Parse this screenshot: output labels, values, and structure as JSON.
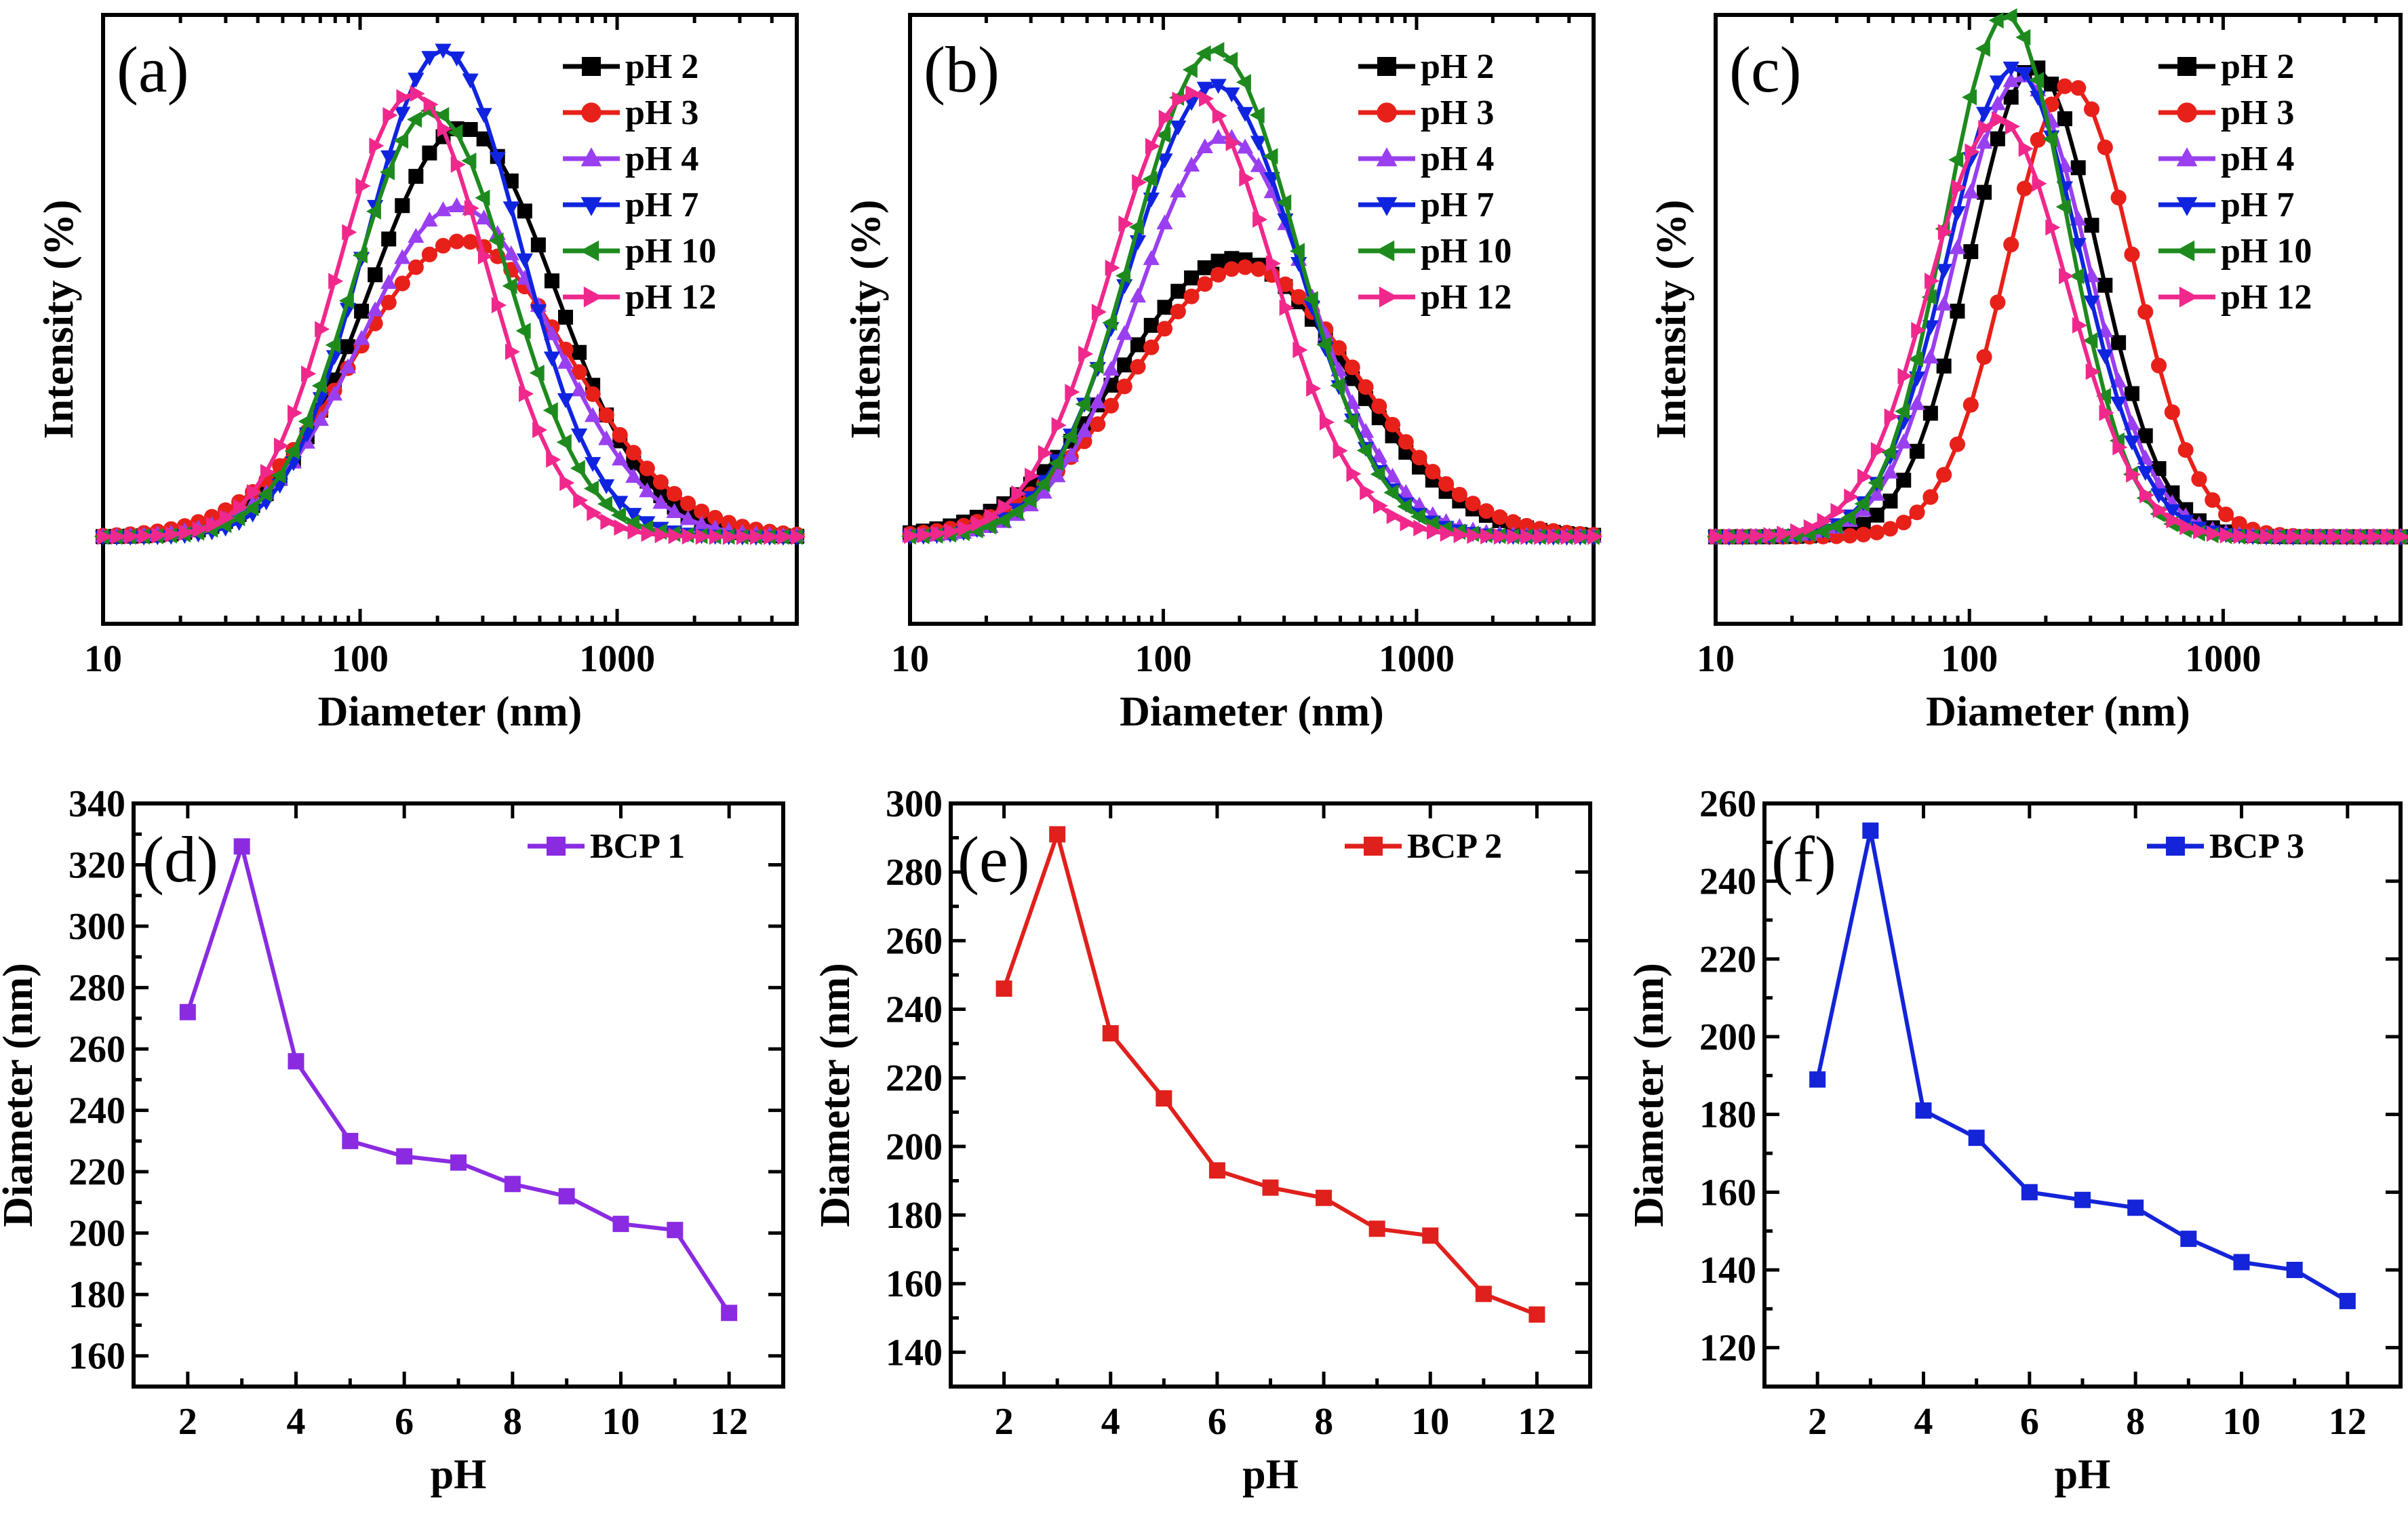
{
  "chart_data": [
    {
      "id": "a",
      "panel_label": "(a)",
      "type": "line",
      "title": "",
      "xlabel": "Diameter (nm)",
      "ylabel": "Intensity (%)",
      "x_scale": "log",
      "xlim": [
        10,
        5000
      ],
      "ylim": [
        -5,
        30
      ],
      "x_ticks": [
        10,
        100,
        1000
      ],
      "x_tick_labels": [
        "10",
        "100",
        "1000"
      ],
      "show_y_ticks": false,
      "legend_position": "top-right",
      "series": [
        {
          "name": "pH 2",
          "color": "#000000",
          "marker": "square",
          "peak": 250,
          "height": 23.5,
          "width": 0.36
        },
        {
          "name": "pH 3",
          "color": "#e8201a",
          "marker": "circle",
          "peak": 250,
          "height": 17.0,
          "width": 0.42
        },
        {
          "name": "pH 4",
          "color": "#9a3ff0",
          "marker": "triangle-up",
          "peak": 240,
          "height": 19.0,
          "width": 0.37
        },
        {
          "name": "pH 7",
          "color": "#1024e0",
          "marker": "triangle-down",
          "peak": 210,
          "height": 28.0,
          "width": 0.3
        },
        {
          "name": "pH 10",
          "color": "#1e8a1e",
          "marker": "triangle-left",
          "peak": 190,
          "height": 24.5,
          "width": 0.3
        },
        {
          "name": "pH 12",
          "color": "#f0288c",
          "marker": "triangle-right",
          "peak": 160,
          "height": 25.5,
          "width": 0.29
        }
      ]
    },
    {
      "id": "b",
      "panel_label": "(b)",
      "type": "line",
      "title": "",
      "xlabel": "Diameter (nm)",
      "ylabel": "Intensity (%)",
      "x_scale": "log",
      "xlim": [
        10,
        5000
      ],
      "ylim": [
        -5,
        30
      ],
      "x_ticks": [
        10,
        100,
        1000
      ],
      "x_tick_labels": [
        "10",
        "100",
        "1000"
      ],
      "show_y_ticks": false,
      "legend_position": "top-right",
      "series": [
        {
          "name": "pH 2",
          "color": "#000000",
          "marker": "square",
          "peak": 190,
          "height": 16.0,
          "width": 0.44
        },
        {
          "name": "pH 3",
          "color": "#e8201a",
          "marker": "circle",
          "peak": 210,
          "height": 15.5,
          "width": 0.44
        },
        {
          "name": "pH 4",
          "color": "#9a3ff0",
          "marker": "triangle-up",
          "peak": 175,
          "height": 23.0,
          "width": 0.34
        },
        {
          "name": "pH 7",
          "color": "#1024e0",
          "marker": "triangle-down",
          "peak": 160,
          "height": 26.0,
          "width": 0.33
        },
        {
          "name": "pH 10",
          "color": "#1e8a1e",
          "marker": "triangle-left",
          "peak": 160,
          "height": 28.0,
          "width": 0.32
        },
        {
          "name": "pH 12",
          "color": "#f0288c",
          "marker": "triangle-right",
          "peak": 130,
          "height": 25.5,
          "width": 0.32
        }
      ]
    },
    {
      "id": "c",
      "panel_label": "(c)",
      "type": "line",
      "title": "",
      "xlabel": "Diameter (nm)",
      "ylabel": "Intensity (%)",
      "x_scale": "log",
      "xlim": [
        10,
        5000
      ],
      "ylim": [
        -5,
        30
      ],
      "x_ticks": [
        10,
        100,
        1000
      ],
      "x_tick_labels": [
        "10",
        "100",
        "1000"
      ],
      "show_y_ticks": false,
      "legend_position": "top-right",
      "series": [
        {
          "name": "pH 2",
          "color": "#000000",
          "marker": "square",
          "peak": 180,
          "height": 27.0,
          "width": 0.25
        },
        {
          "name": "pH 3",
          "color": "#e8201a",
          "marker": "circle",
          "peak": 250,
          "height": 26.0,
          "width": 0.25
        },
        {
          "name": "pH 4",
          "color": "#9a3ff0",
          "marker": "triangle-up",
          "peak": 160,
          "height": 26.5,
          "width": 0.26
        },
        {
          "name": "pH 7",
          "color": "#1024e0",
          "marker": "triangle-down",
          "peak": 150,
          "height": 27.0,
          "width": 0.26
        },
        {
          "name": "pH 10",
          "color": "#1e8a1e",
          "marker": "triangle-left",
          "peak": 140,
          "height": 30.0,
          "width": 0.24
        },
        {
          "name": "pH 12",
          "color": "#f0288c",
          "marker": "triangle-right",
          "peak": 130,
          "height": 24.0,
          "width": 0.27
        }
      ]
    },
    {
      "id": "d",
      "panel_label": "(d)",
      "type": "line",
      "title": "",
      "xlabel": "pH",
      "ylabel": "Diameter (nm)",
      "xlim": [
        1.0,
        13.0
      ],
      "ylim": [
        150,
        340
      ],
      "x_ticks": [
        2,
        4,
        6,
        8,
        10,
        12
      ],
      "x_tick_labels": [
        "2",
        "4",
        "6",
        "8",
        "10",
        "12"
      ],
      "y_ticks": [
        160,
        180,
        200,
        220,
        240,
        260,
        280,
        300,
        320,
        340
      ],
      "y_tick_labels": [
        "160",
        "180",
        "200",
        "220",
        "240",
        "260",
        "280",
        "300",
        "320",
        "340"
      ],
      "legend_position": "top-right",
      "series": [
        {
          "name": "BCP 1",
          "color": "#8a2be2",
          "marker": "square",
          "x": [
            2,
            3,
            4,
            5,
            6,
            7,
            8,
            9,
            10,
            11,
            12
          ],
          "y": [
            272,
            326,
            256,
            230,
            225,
            223,
            216,
            212,
            203,
            201,
            174
          ]
        }
      ]
    },
    {
      "id": "e",
      "panel_label": "(e)",
      "type": "line",
      "title": "",
      "xlabel": "pH",
      "ylabel": "Diameter (nm)",
      "xlim": [
        1.0,
        13.0
      ],
      "ylim": [
        130,
        300
      ],
      "x_ticks": [
        2,
        4,
        6,
        8,
        10,
        12
      ],
      "x_tick_labels": [
        "2",
        "4",
        "6",
        "8",
        "10",
        "12"
      ],
      "y_ticks": [
        140,
        160,
        180,
        200,
        220,
        240,
        260,
        280,
        300
      ],
      "y_tick_labels": [
        "140",
        "160",
        "180",
        "200",
        "220",
        "240",
        "260",
        "280",
        "300"
      ],
      "legend_position": "top-right",
      "series": [
        {
          "name": "BCP 2",
          "color": "#e0201c",
          "marker": "square",
          "x": [
            2,
            3,
            4,
            5,
            6,
            7,
            8,
            9,
            10,
            11,
            12
          ],
          "y": [
            246,
            291,
            233,
            214,
            193,
            188,
            185,
            176,
            174,
            157,
            151
          ]
        }
      ]
    },
    {
      "id": "f",
      "panel_label": "(f)",
      "type": "line",
      "title": "",
      "xlabel": "pH",
      "ylabel": "Diameter (nm)",
      "xlim": [
        1.0,
        13.0
      ],
      "ylim": [
        110,
        260
      ],
      "x_ticks": [
        2,
        4,
        6,
        8,
        10,
        12
      ],
      "x_tick_labels": [
        "2",
        "4",
        "6",
        "8",
        "10",
        "12"
      ],
      "y_ticks": [
        120,
        140,
        160,
        180,
        200,
        220,
        240,
        260
      ],
      "y_tick_labels": [
        "120",
        "140",
        "160",
        "180",
        "200",
        "220",
        "240",
        "260"
      ],
      "legend_position": "top-right",
      "series": [
        {
          "name": "BCP 3",
          "color": "#1424d8",
          "marker": "square",
          "x": [
            2,
            3,
            4,
            5,
            6,
            7,
            8,
            9,
            10,
            11,
            12
          ],
          "y": [
            189,
            253,
            181,
            174,
            160,
            158,
            156,
            148,
            142,
            140,
            132
          ]
        }
      ]
    }
  ]
}
